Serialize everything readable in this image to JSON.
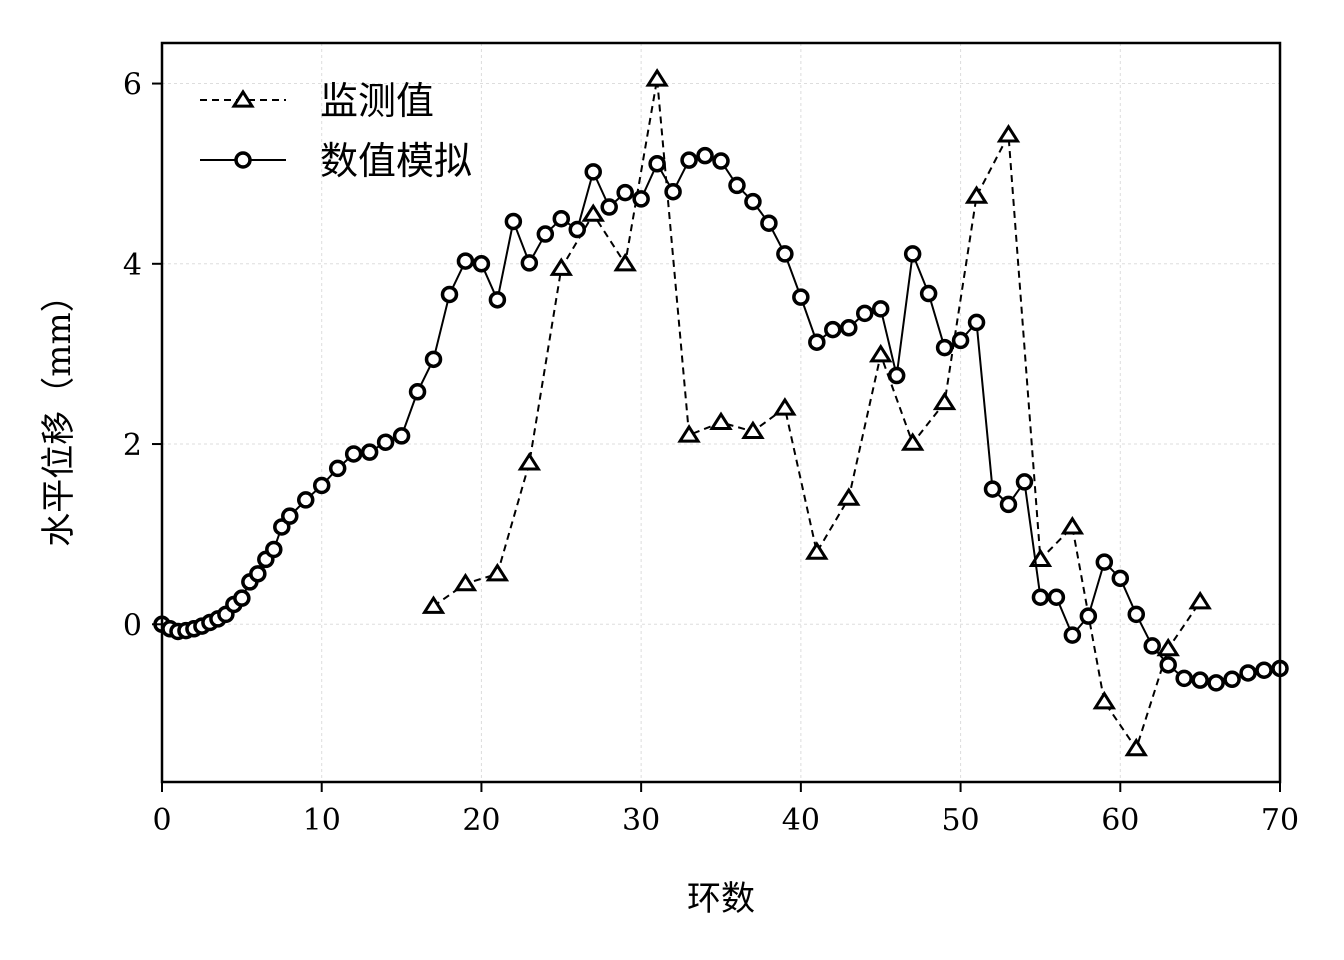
{
  "chart_data": {
    "type": "line",
    "title": "",
    "xlabel": "环数",
    "ylabel": "水平位移（mm）",
    "xlim": [
      0,
      70
    ],
    "ylim": [
      -1.75,
      6.45
    ],
    "xticks": [
      0,
      10,
      20,
      30,
      40,
      50,
      60,
      70
    ],
    "yticks": [
      0,
      2,
      4,
      6
    ],
    "grid": true,
    "legend_position": "top-left",
    "colors": {
      "line": "#000000",
      "grid": "#dddddd",
      "marker_fill": "#ffffff"
    },
    "series": [
      {
        "name": "监测值",
        "style": "dashed",
        "marker": "triangle",
        "x": [
          17,
          19,
          21,
          23,
          25,
          27,
          29,
          31,
          33,
          35,
          37,
          39,
          41,
          43,
          45,
          47,
          49,
          51,
          53,
          55,
          57,
          59,
          61,
          63,
          65
        ],
        "y": [
          0.2,
          0.45,
          0.56,
          1.79,
          3.95,
          4.55,
          4.0,
          6.05,
          2.1,
          2.24,
          2.14,
          2.4,
          0.8,
          1.4,
          2.99,
          2.01,
          2.46,
          4.75,
          5.43,
          0.72,
          1.08,
          -0.86,
          -1.38,
          -0.27,
          0.25
        ]
      },
      {
        "name": "数值模拟",
        "style": "solid",
        "marker": "circle",
        "x": [
          0,
          0.5,
          1,
          1.5,
          2,
          2.5,
          3,
          3.5,
          4,
          4.5,
          5,
          5.5,
          6,
          6.5,
          7,
          7.5,
          8,
          9,
          10,
          11,
          12,
          13,
          14,
          15,
          16,
          17,
          18,
          19,
          20,
          21,
          22,
          23,
          24,
          25,
          26,
          27,
          28,
          29,
          30,
          31,
          32,
          33,
          34,
          35,
          36,
          37,
          38,
          39,
          40,
          41,
          42,
          43,
          44,
          45,
          46,
          47,
          48,
          49,
          50,
          51,
          52,
          53,
          54,
          55,
          56,
          57,
          58,
          59,
          60,
          61,
          62,
          63,
          64,
          65,
          66,
          67,
          68,
          69,
          70
        ],
        "y": [
          0.0,
          -0.05,
          -0.08,
          -0.07,
          -0.05,
          -0.02,
          0.02,
          0.06,
          0.11,
          0.22,
          0.29,
          0.47,
          0.56,
          0.72,
          0.83,
          1.08,
          1.2,
          1.38,
          1.54,
          1.73,
          1.89,
          1.91,
          2.02,
          2.09,
          2.58,
          2.94,
          3.66,
          4.03,
          4.0,
          3.6,
          4.47,
          4.01,
          4.33,
          4.5,
          4.38,
          5.02,
          4.63,
          4.79,
          4.72,
          5.11,
          4.8,
          5.15,
          5.2,
          5.14,
          4.87,
          4.69,
          4.45,
          4.11,
          3.63,
          3.13,
          3.27,
          3.29,
          3.45,
          3.5,
          2.76,
          4.11,
          3.67,
          3.07,
          3.15,
          3.35,
          1.5,
          1.33,
          1.58,
          0.3,
          0.3,
          -0.12,
          0.09,
          0.69,
          0.51,
          0.11,
          -0.24,
          -0.45,
          -0.6,
          -0.62,
          -0.65,
          -0.61,
          -0.54,
          -0.51,
          -0.49
        ]
      }
    ]
  }
}
